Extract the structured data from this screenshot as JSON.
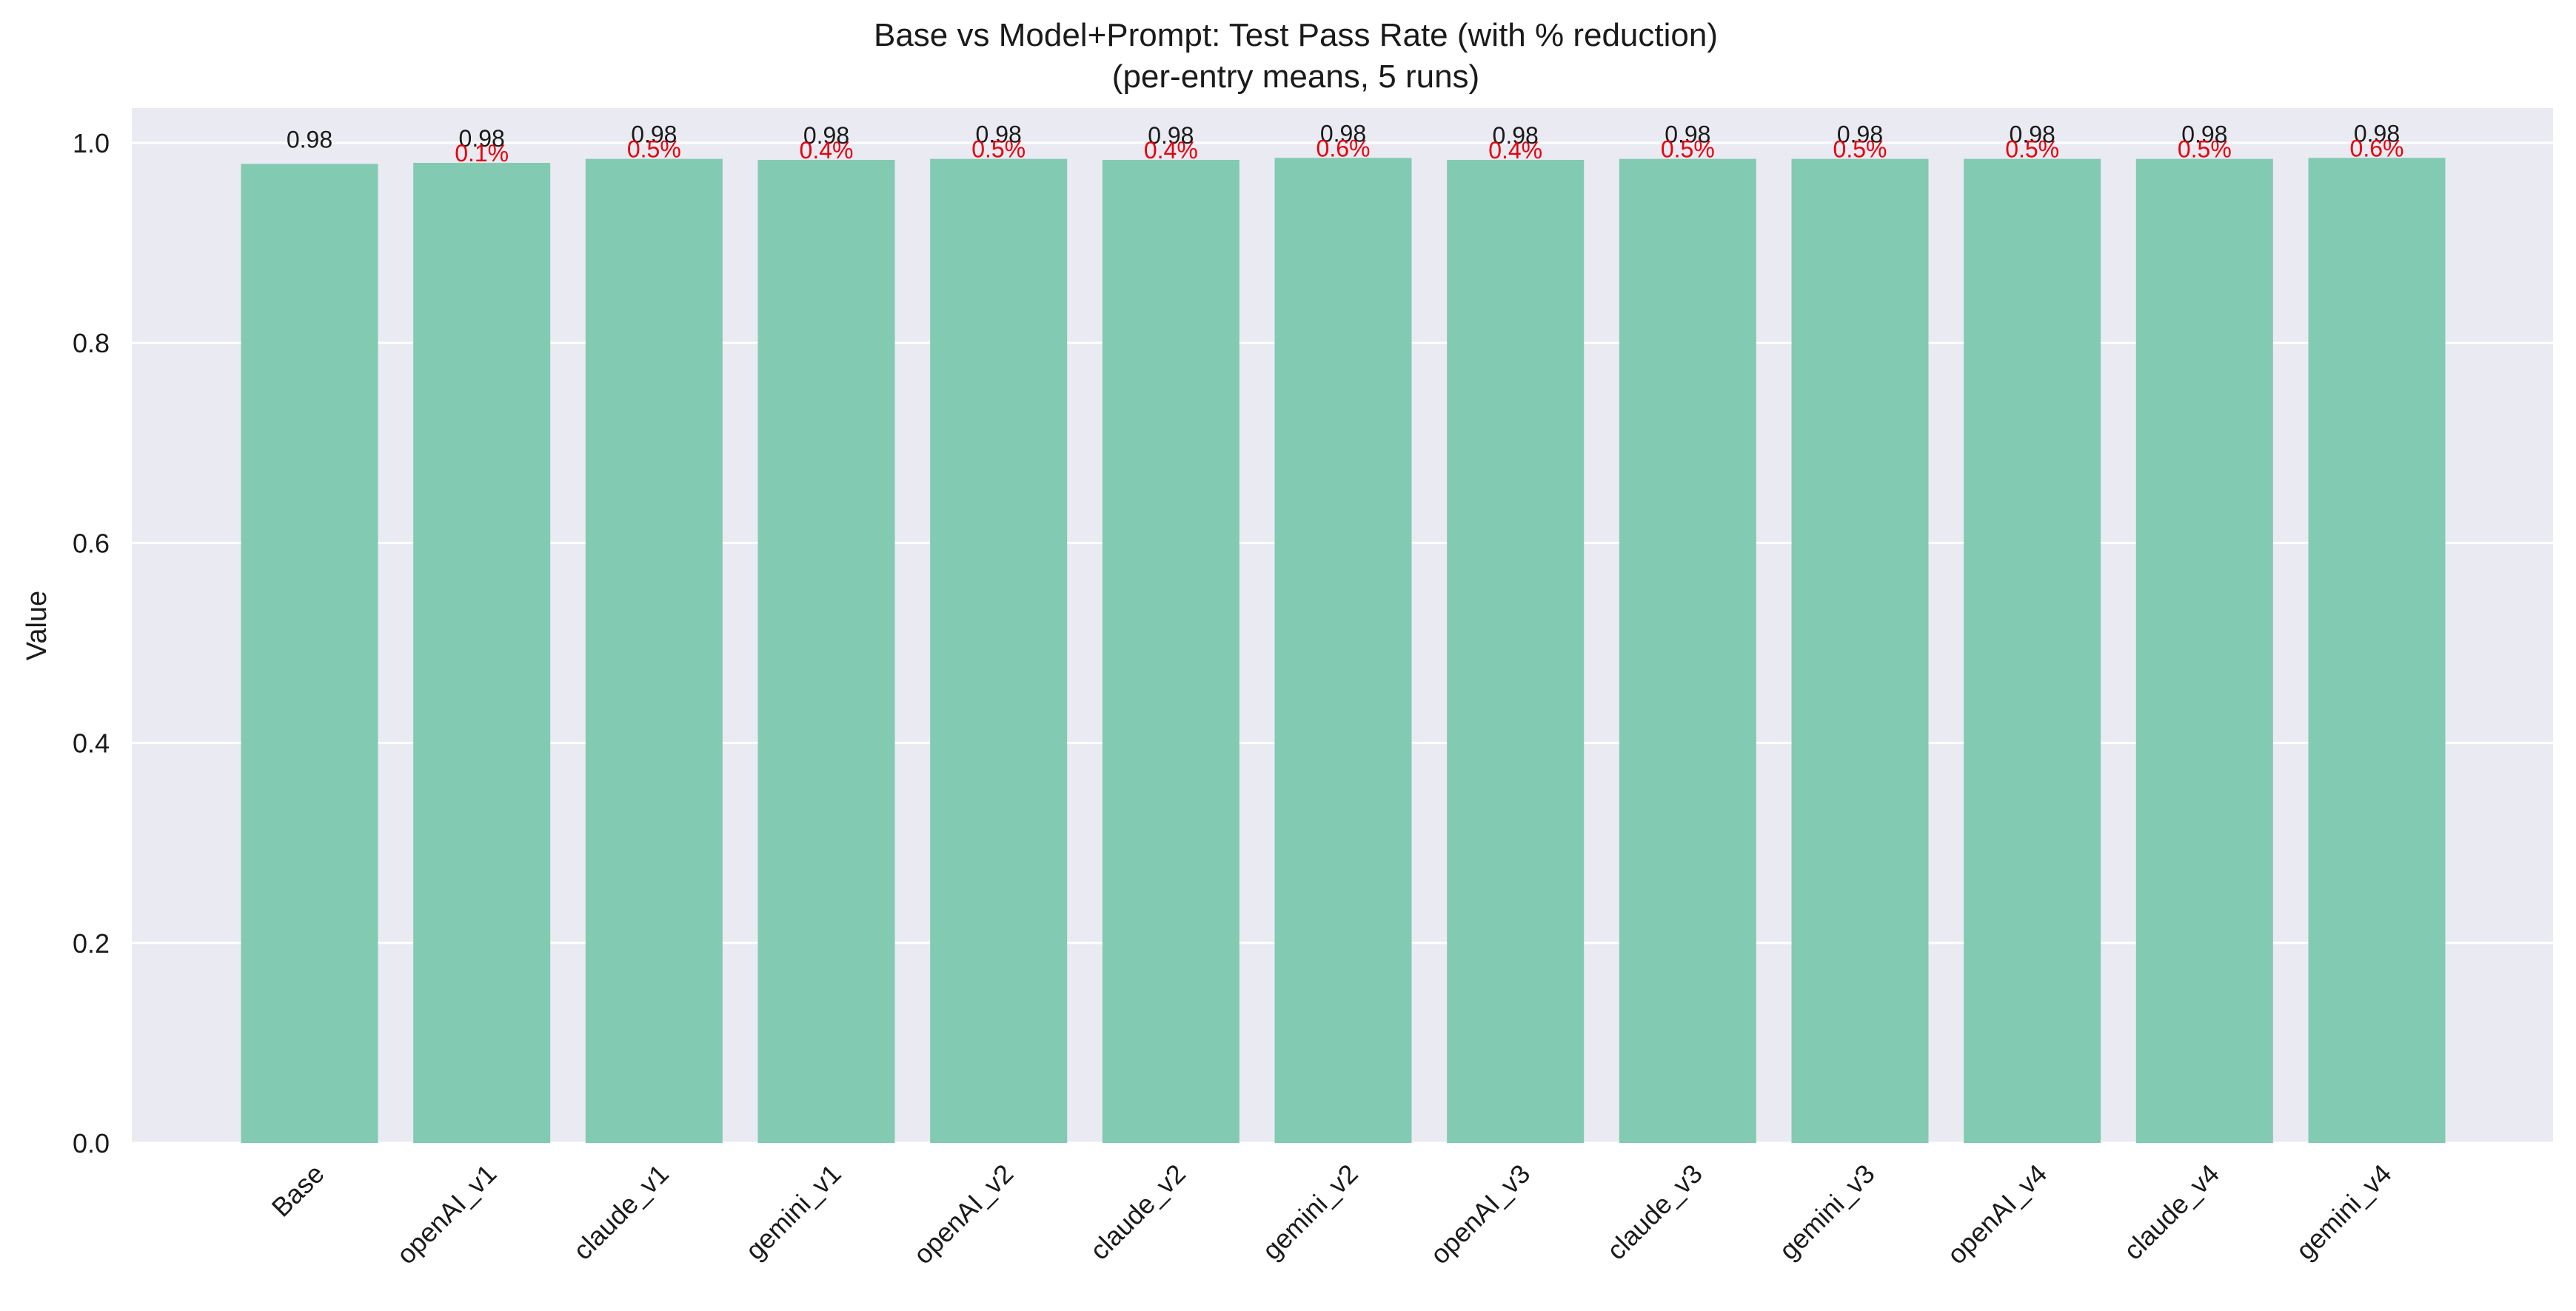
{
  "chart_data": {
    "type": "bar",
    "title": "Base vs Model+Prompt: Test Pass Rate (with % reduction)",
    "subtitle": "(per-entry means, 5 runs)",
    "xlabel": "",
    "ylabel": "Value",
    "ylim": [
      0,
      1.03
    ],
    "yticks": [
      "0.0",
      "0.2",
      "0.4",
      "0.6",
      "0.8",
      "1.0"
    ],
    "grid": true,
    "bar_color": "#82cab2",
    "label_color": "#1a1a1a",
    "reduction_color": "#e8000b",
    "background_color": "#eaeaf2",
    "categories": [
      "Base",
      "openAI_v1",
      "claude_v1",
      "gemini_v1",
      "openAI_v2",
      "claude_v2",
      "gemini_v2",
      "openAI_v3",
      "claude_v3",
      "gemini_v3",
      "openAI_v4",
      "claude_v4",
      "gemini_v4"
    ],
    "values": [
      0.979,
      0.98,
      0.984,
      0.983,
      0.984,
      0.983,
      0.985,
      0.983,
      0.984,
      0.984,
      0.984,
      0.984,
      0.985
    ],
    "value_labels": [
      "0.98",
      "0.98",
      "0.98",
      "0.98",
      "0.98",
      "0.98",
      "0.98",
      "0.98",
      "0.98",
      "0.98",
      "0.98",
      "0.98",
      "0.98"
    ],
    "reduction_labels": [
      "",
      "0.1%",
      "0.5%",
      "0.4%",
      "0.5%",
      "0.4%",
      "0.6%",
      "0.4%",
      "0.5%",
      "0.5%",
      "0.5%",
      "0.5%",
      "0.6%"
    ]
  }
}
